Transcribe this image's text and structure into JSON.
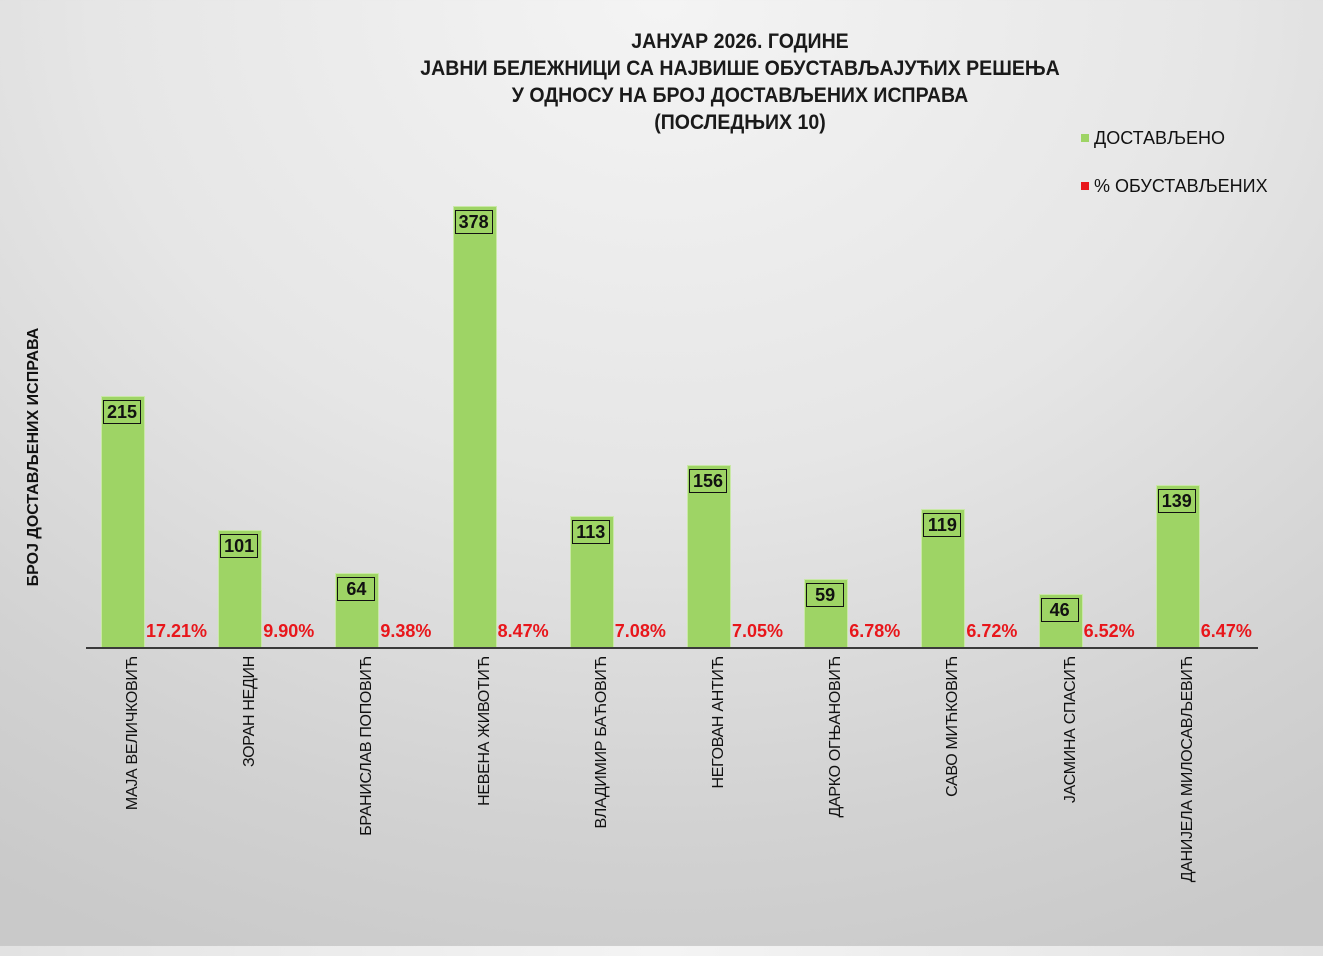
{
  "chart_data": {
    "type": "bar",
    "title": "ЈАНУАР 2026. ГОДИНЕ\nЈАВНИ БЕЛЕЖНИЦИ СА НАЈВИШЕ ОБУСТАВЉАЈУЋИХ РЕШЕЊА\nУ ОДНОСУ НА БРОЈ ДОСТАВЉЕНИХ ИСПРАВА\n(ПОСЛЕДЊИХ 10)",
    "title_lines": [
      "ЈАНУАР 2026. ГОДИНЕ",
      "ЈАВНИ БЕЛЕЖНИЦИ СА НАЈВИШЕ ОБУСТАВЉАЈУЋИХ РЕШЕЊА",
      "У ОДНОСУ НА БРОЈ ДОСТАВЉЕНИХ ИСПРАВА",
      "(ПОСЛЕДЊИХ 10)"
    ],
    "xlabel": "",
    "ylabel": "БРОЈ ДОСТАВЉЕНИХ ИСПРАВА",
    "ylim": [
      0,
      400
    ],
    "grid": false,
    "legend_position": "top-right",
    "categories": [
      "МАЈА ВЕЛИЧКОВИЋ",
      "ЗОРАН НЕДИН",
      "БРАНИСЛАВ ПОПОВИЋ",
      "НЕВЕНА ЖИВОТИЋ",
      "ВЛАДИМИР БАЋОВИЋ",
      "НЕГОВАН АНТИЋ",
      "ДАРКО ОГЊАНОВИЋ",
      "САВО МИЋКОВИЋ",
      "ЈАСМИНА СПАСИЋ",
      "ДАНИЈЕЛА МИЛОСАВЉЕВИЋ"
    ],
    "series": [
      {
        "name": "ДОСТАВЉЕНО",
        "color": "#9ed465",
        "values": [
          215,
          101,
          64,
          378,
          113,
          156,
          59,
          119,
          46,
          139
        ],
        "labels": [
          "215",
          "101",
          "64",
          "378",
          "113",
          "156",
          "59",
          "119",
          "46",
          "139"
        ]
      },
      {
        "name": "% ОБУСТАВЉЕНИХ",
        "color": "#e8161b",
        "values": [
          17.21,
          9.9,
          9.38,
          8.47,
          7.08,
          7.05,
          6.78,
          6.72,
          6.52,
          6.47
        ],
        "labels": [
          "17.21%",
          "9.90%",
          "9.38%",
          "8.47%",
          "7.08%",
          "7.05%",
          "6.78%",
          "6.72%",
          "6.52%",
          "6.47%"
        ]
      }
    ]
  },
  "legend": {
    "items": [
      {
        "label": "ДОСТАВЉЕНО",
        "color": "#9ed465"
      },
      {
        "label": "% ОБУСТАВЉЕНИХ",
        "color": "#e8161b"
      }
    ]
  },
  "colors": {
    "bar": "#9ed465",
    "percent": "#e8161b",
    "axis": "#3a3a3a"
  }
}
